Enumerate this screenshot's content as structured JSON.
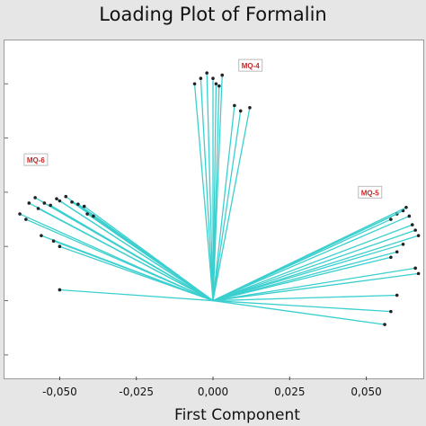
{
  "chart_data": {
    "type": "line",
    "title": "Loading Plot of Formalin",
    "xlabel": "First Component",
    "ylabel": "",
    "xlim": [
      -0.068,
      0.068
    ],
    "ylim": [
      -0.07,
      0.24
    ],
    "xticks": [
      -0.05,
      -0.025,
      0.0,
      0.025,
      0.05
    ],
    "xtick_labels": [
      "-0,050",
      "-0,025",
      "0,000",
      "0,025",
      "0,050"
    ],
    "grid": false,
    "series": [
      {
        "name": "MQ-4",
        "color": "#3ccfcf",
        "x": [
          -0.006,
          -0.004,
          -0.002,
          0.0,
          0.001,
          0.002,
          0.003,
          0.007,
          0.009,
          0.012
        ],
        "y": [
          0.2,
          0.205,
          0.21,
          0.205,
          0.2,
          0.198,
          0.208,
          0.18,
          0.175,
          0.178
        ]
      },
      {
        "name": "MQ-6",
        "color": "#3ccfcf",
        "x": [
          -0.063,
          -0.061,
          -0.06,
          -0.058,
          -0.057,
          -0.055,
          -0.053,
          -0.051,
          -0.05,
          -0.048,
          -0.046,
          -0.044,
          -0.042,
          -0.041,
          -0.039,
          -0.056,
          -0.052,
          -0.05
        ],
        "y": [
          0.08,
          0.075,
          0.09,
          0.095,
          0.085,
          0.09,
          0.088,
          0.094,
          0.092,
          0.096,
          0.091,
          0.089,
          0.087,
          0.08,
          0.078,
          0.06,
          0.055,
          0.05
        ]
      },
      {
        "name": "MQ-5",
        "color": "#3ccfcf",
        "x": [
          0.058,
          0.06,
          0.062,
          0.063,
          0.064,
          0.065,
          0.066,
          0.067,
          0.062,
          0.06,
          0.058,
          0.066,
          0.067,
          0.06,
          0.058,
          0.056
        ],
        "y": [
          0.075,
          0.08,
          0.083,
          0.086,
          0.078,
          0.07,
          0.065,
          0.06,
          0.052,
          0.045,
          0.04,
          0.03,
          0.025,
          0.005,
          -0.01,
          -0.022
        ]
      },
      {
        "name": "",
        "color": "#3ccfcf",
        "x": [
          -0.05
        ],
        "y": [
          0.01
        ]
      }
    ],
    "group_labels": [
      {
        "text": "MQ-4",
        "x": 0.009,
        "y": 0.215
      },
      {
        "text": "MQ-6",
        "x": -0.061,
        "y": 0.128
      },
      {
        "text": "MQ-5",
        "x": 0.048,
        "y": 0.098
      }
    ]
  }
}
